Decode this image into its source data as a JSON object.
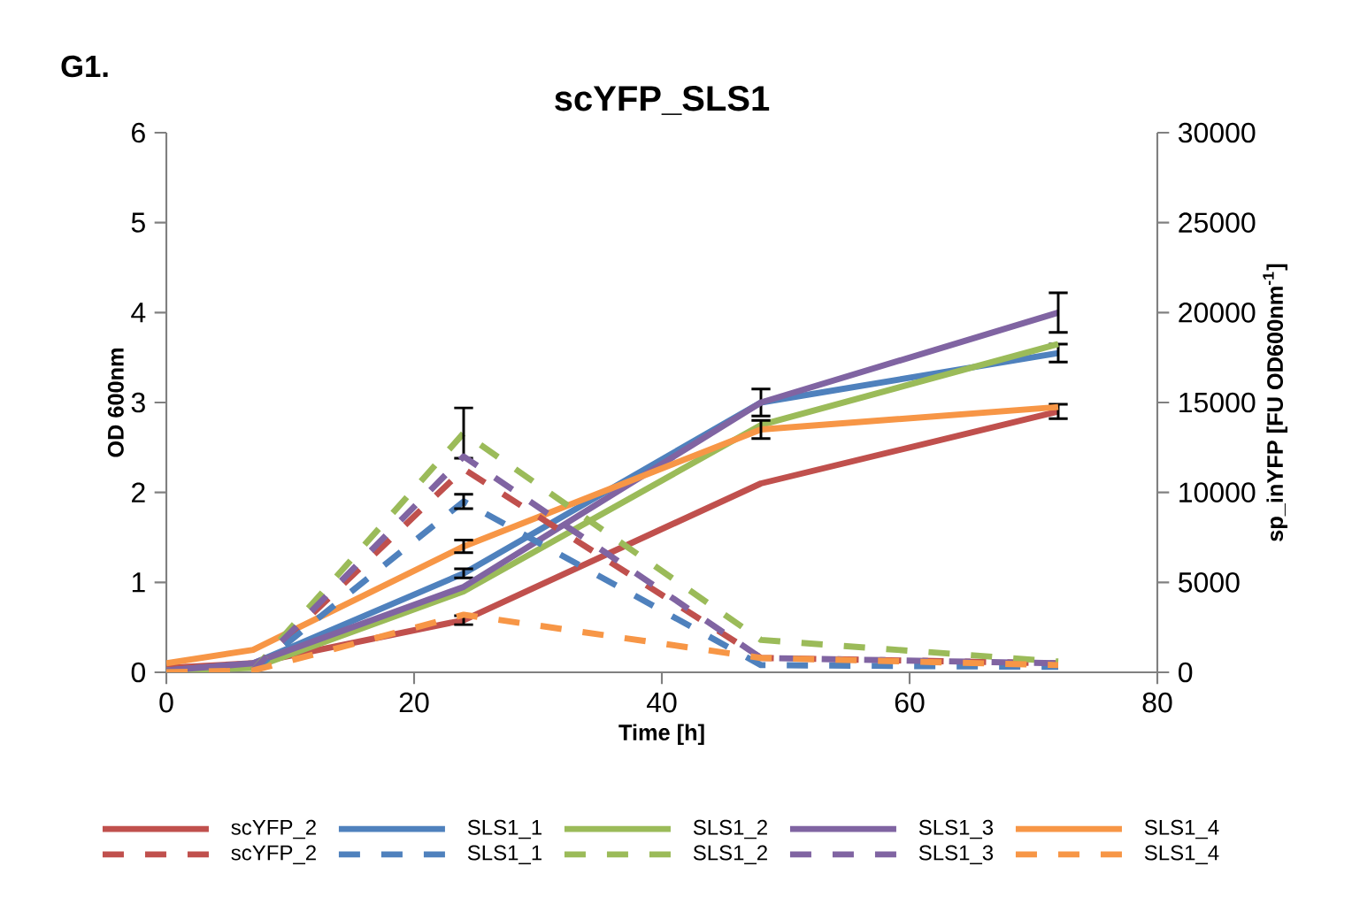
{
  "chart_data": {
    "type": "line",
    "title": "scYFP_SLS1",
    "xlabel": "Time [h]",
    "ylabel": "OD 600nm",
    "y2label": "sp_inYFP  [FU OD600nm$^{-1}$]",
    "annotations": [
      "G1."
    ],
    "x": [
      0,
      7,
      24,
      48,
      72
    ],
    "xlim": [
      0,
      80
    ],
    "xticks": [
      0,
      20,
      40,
      60,
      80
    ],
    "ylim": [
      0,
      6
    ],
    "yticks": [
      0,
      1,
      2,
      3,
      4,
      5,
      6
    ],
    "y2lim": [
      0,
      30000
    ],
    "y2ticks": [
      0,
      5000,
      10000,
      15000,
      20000,
      25000,
      30000
    ],
    "legend": "bottom",
    "marker": "none",
    "grid": false,
    "series": [
      {
        "name": "scYFP_2",
        "color": "#c0504d",
        "line_style": "solid",
        "values": [
          0.05,
          0.1,
          0.58,
          2.1,
          2.9
        ],
        "errors": [
          null,
          null,
          0.05,
          null,
          0.08
        ]
      },
      {
        "name": "SLS1_1",
        "color": "#4f81bd",
        "line_style": "solid",
        "values": [
          0.02,
          0.1,
          1.1,
          3.0,
          3.55
        ],
        "errors": [
          null,
          null,
          0.05,
          0.15,
          0.1
        ]
      },
      {
        "name": "SLS1_2",
        "color": "#9bbb59",
        "line_style": "solid",
        "values": [
          0.02,
          0.05,
          0.9,
          2.75,
          3.65
        ]
      },
      {
        "name": "SLS1_3",
        "color": "#8064a2",
        "line_style": "solid",
        "values": [
          0.02,
          0.1,
          0.95,
          3.0,
          4.0
        ],
        "errors": [
          null,
          null,
          null,
          null,
          0.22
        ]
      },
      {
        "name": "SLS1_4",
        "color": "#f79646",
        "line_style": "solid",
        "values": [
          0.1,
          0.25,
          1.4,
          2.7,
          2.95
        ],
        "errors": [
          null,
          null,
          0.07,
          0.1,
          null
        ]
      },
      {
        "name": "scYFP_2",
        "color": "#c0504d",
        "line_style": "dashed",
        "axis": "y2",
        "values": [
          0,
          100,
          11300,
          800,
          500
        ]
      },
      {
        "name": "SLS1_1",
        "color": "#4f81bd",
        "line_style": "dashed",
        "axis": "y2",
        "values": [
          0,
          100,
          9500,
          400,
          300
        ],
        "errors": [
          null,
          null,
          400,
          null,
          null
        ]
      },
      {
        "name": "SLS1_2",
        "color": "#9bbb59",
        "line_style": "dashed",
        "axis": "y2",
        "values": [
          0,
          100,
          13300,
          1800,
          600
        ],
        "errors": [
          null,
          null,
          1400,
          null,
          null
        ]
      },
      {
        "name": "SLS1_3",
        "color": "#8064a2",
        "line_style": "dashed",
        "axis": "y2",
        "values": [
          0,
          100,
          12000,
          800,
          500
        ]
      },
      {
        "name": "SLS1_4",
        "color": "#f79646",
        "line_style": "dashed",
        "axis": "y2",
        "values": [
          0,
          100,
          3200,
          800,
          400
        ]
      }
    ]
  }
}
